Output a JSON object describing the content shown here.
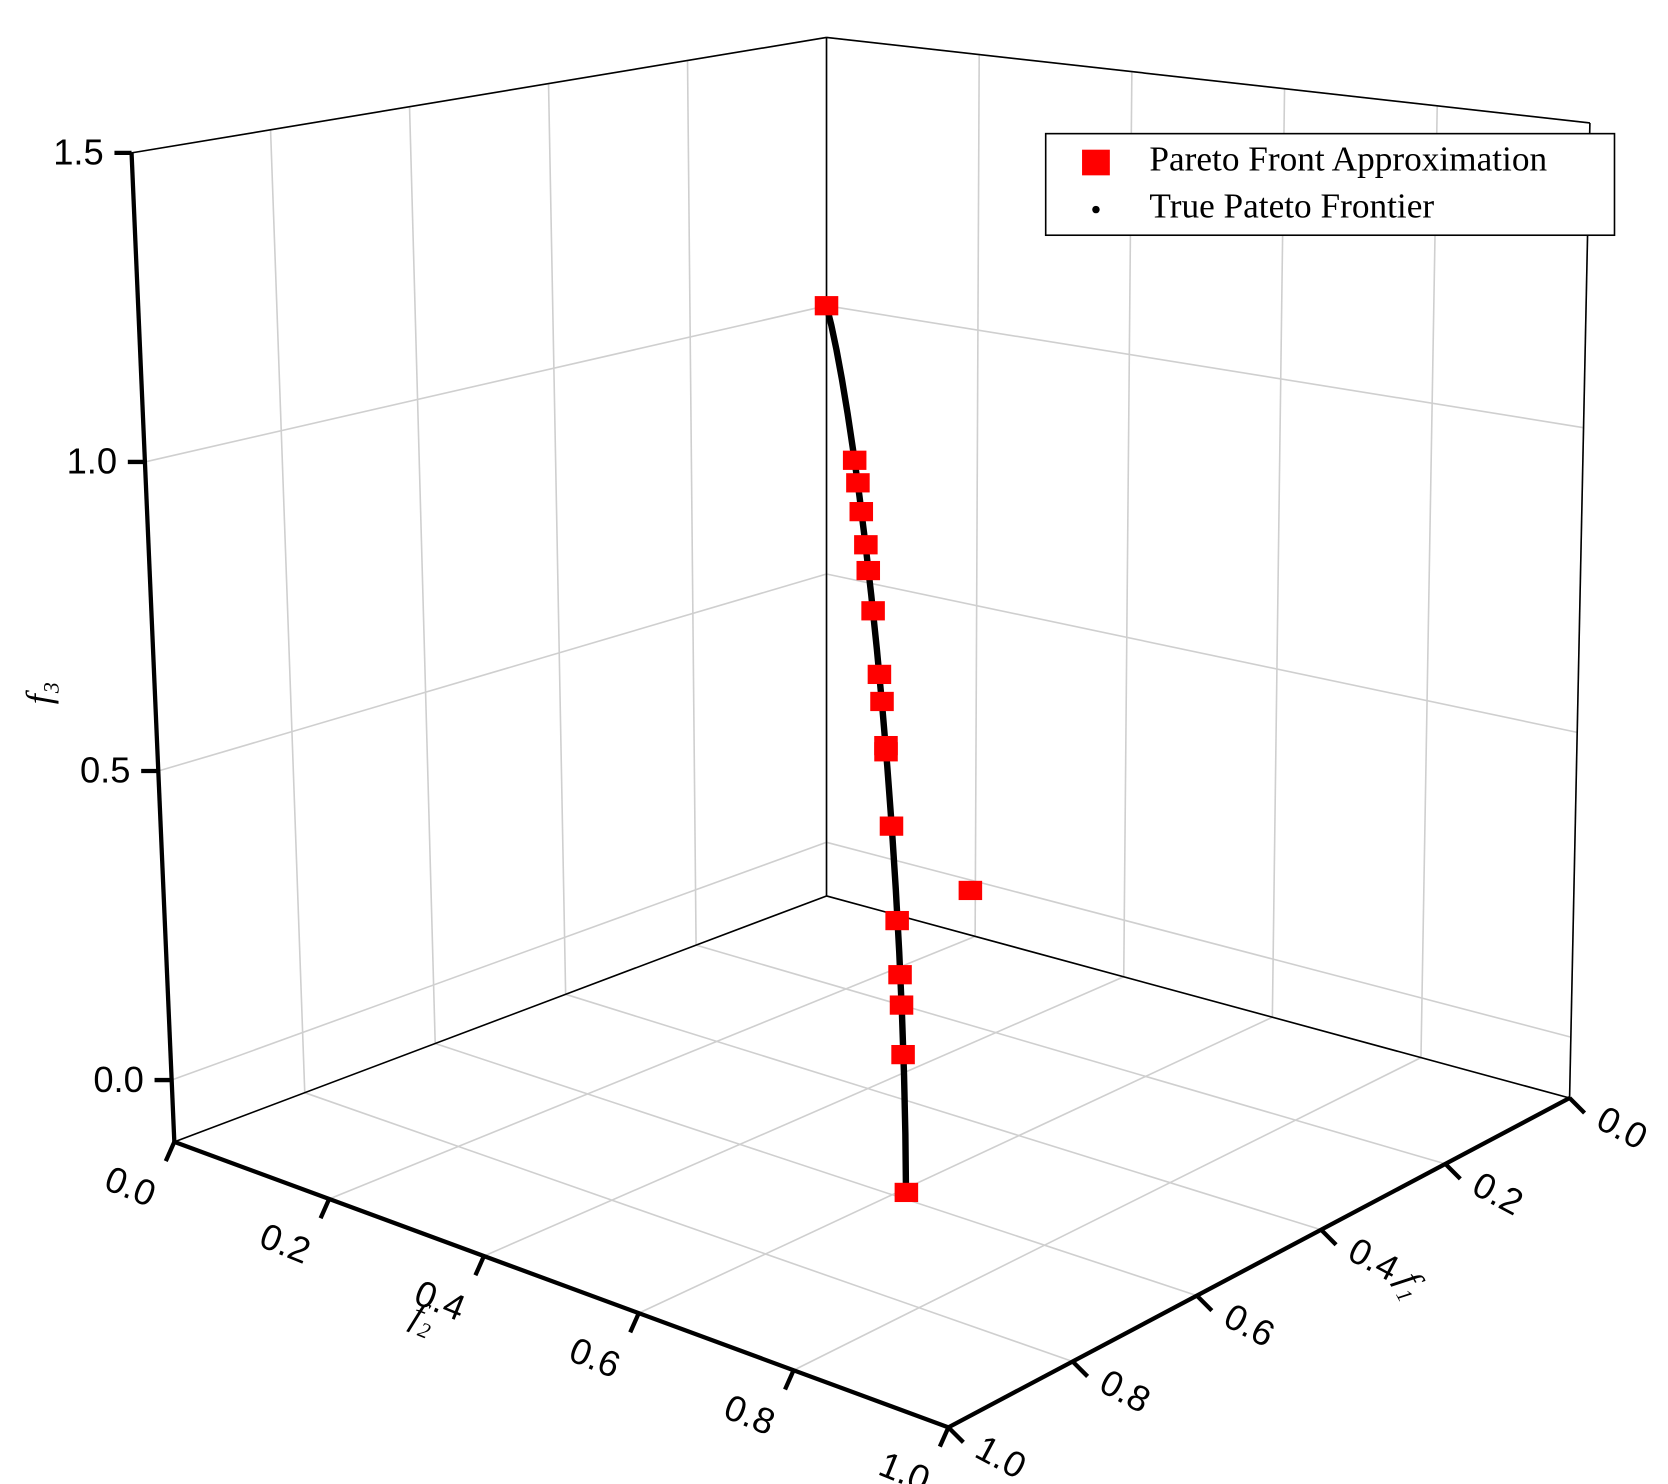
{
  "chart_data": {
    "type": "scatter3d",
    "xlabel": "f₁",
    "ylabel": "f₂",
    "zlabel": "f₃",
    "xlim": [
      0,
      1
    ],
    "ylim": [
      0,
      1
    ],
    "zlim": [
      -0.1,
      1.5
    ],
    "xticks": [
      {
        "value": 0,
        "label": "0.0"
      },
      0.2,
      0.4,
      0.6,
      0.8,
      {
        "value": 1,
        "label": "1.0"
      }
    ],
    "yticks": [
      {
        "value": 0,
        "label": "0.0"
      },
      0.2,
      0.4,
      0.6,
      0.8,
      {
        "value": 1,
        "label": "1.0"
      }
    ],
    "zticks": [
      {
        "value": 0,
        "label": "0.0"
      },
      0.5,
      {
        "value": 1,
        "label": "1.0"
      },
      1.5
    ],
    "grid": true,
    "legend": "upper right",
    "series": [
      {
        "name": "Pareto Front Approximation",
        "color": "#ff0000",
        "marker": "square",
        "x": [
          0,
          0.31,
          0.34,
          0.37,
          0.41,
          0.43,
          0.47,
          0.52,
          0.54,
          0.57,
          0.57,
          0.61,
          0.62,
          0.65,
          0.67,
          0.68,
          0.69,
          0.71
        ],
        "y": [
          0,
          0.31,
          0.34,
          0.37,
          0.41,
          0.43,
          0.47,
          0.52,
          0.54,
          0.57,
          0.57,
          0.61,
          0.72,
          0.65,
          0.67,
          0.68,
          0.69,
          0.71
        ],
        "z": [
          1.0,
          0.9,
          0.88,
          0.85,
          0.82,
          0.79,
          0.75,
          0.68,
          0.65,
          0.6,
          0.59,
          0.5,
          0.44,
          0.38,
          0.31,
          0.27,
          0.2,
          0
        ]
      },
      {
        "name": "True Pateto Frontier",
        "color": "#000000",
        "marker": "dot",
        "x": [
          0,
          0.0617,
          0.1228,
          0.183,
          0.2418,
          0.2988,
          0.3536,
          0.4056,
          0.4545,
          0.5,
          0.5417,
          0.5792,
          0.6124,
          0.6409,
          0.6645,
          0.683,
          0.6964,
          0.7044,
          0.7071
        ],
        "y": [
          0,
          0.0617,
          0.1228,
          0.183,
          0.2418,
          0.2988,
          0.3536,
          0.4056,
          0.4545,
          0.5,
          0.5417,
          0.5792,
          0.6124,
          0.6409,
          0.6645,
          0.683,
          0.6964,
          0.7044,
          0.7071
        ],
        "z": [
          1,
          0.9962,
          0.9848,
          0.9659,
          0.9397,
          0.9063,
          0.866,
          0.8192,
          0.766,
          0.7071,
          0.6428,
          0.5736,
          0.5,
          0.4226,
          0.342,
          0.2588,
          0.1736,
          0.0872,
          0
        ]
      }
    ]
  }
}
